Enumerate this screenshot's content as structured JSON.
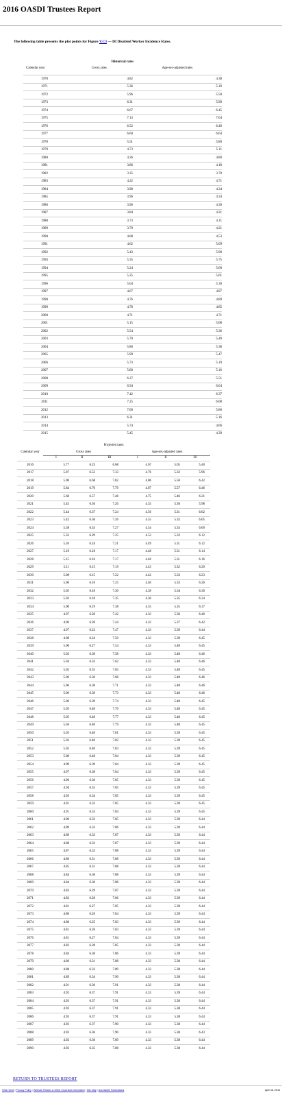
{
  "page": {
    "title": "2016 OASDI Trustees Report",
    "intro_before": "The following table presents the plot points for Figure ",
    "intro_link": "V.C3",
    "intro_after": " — DI Disabled Worker Incidence Rates."
  },
  "historical": {
    "caption": "Historical rates",
    "col_year": "Calendar year",
    "col_gross": "Gross rates",
    "col_adjusted": "Age-sex-adjusted rates",
    "rows": [
      [
        "1970",
        "4.82",
        "4.38"
      ],
      [
        "1971",
        "5.36",
        "5.10"
      ],
      [
        "1972",
        "5.96",
        "5.50"
      ],
      [
        "1973",
        "6.31",
        "5.90"
      ],
      [
        "1974",
        "6.67",
        "6.45"
      ],
      [
        "1975",
        "7.13",
        "7.04"
      ],
      [
        "1976",
        "6.52",
        "6.49"
      ],
      [
        "1977",
        "6.60",
        "6.64"
      ],
      [
        "1978",
        "5.51",
        "5.80"
      ],
      [
        "1979",
        "4.73",
        "5.11"
      ],
      [
        "1980",
        "4.36",
        "4.80"
      ],
      [
        "1981",
        "3.86",
        "4.18"
      ],
      [
        "1982",
        "3.35",
        "3.70"
      ],
      [
        "1983",
        "4.22",
        "4.71"
      ],
      [
        "1984",
        "3.98",
        "4.34"
      ],
      [
        "1985",
        "3.96",
        "4.34"
      ],
      [
        "1986",
        "3.96",
        "4.30"
      ],
      [
        "1987",
        "3.84",
        "4.21"
      ],
      [
        "1988",
        "3.73",
        "4.11"
      ],
      [
        "1989",
        "3.79",
        "4.21"
      ],
      [
        "1990",
        "4.08",
        "4.53"
      ],
      [
        "1991",
        "4.62",
        "5.09"
      ],
      [
        "1992",
        "5.43",
        "5.90"
      ],
      [
        "1993",
        "5.35",
        "5.75"
      ],
      [
        "1994",
        "5.24",
        "5.60"
      ],
      [
        "1995",
        "5.25",
        "5.61"
      ],
      [
        "1996",
        "5.04",
        "5.30"
      ],
      [
        "1997",
        "4.67",
        "4.87"
      ],
      [
        "1998",
        "4.76",
        "4.89"
      ],
      [
        "1999",
        "4.78",
        "4.85"
      ],
      [
        "2000",
        "4.71",
        "4.71"
      ],
      [
        "2001",
        "5.15",
        "5.08"
      ],
      [
        "2002",
        "5.54",
        "5.36"
      ],
      [
        "2003",
        "5.70",
        "5.40"
      ],
      [
        "2004",
        "5.80",
        "5.38"
      ],
      [
        "2005",
        "5.99",
        "5.47"
      ],
      [
        "2006",
        "5.73",
        "5.19"
      ],
      [
        "2007",
        "5.80",
        "5.16"
      ],
      [
        "2008",
        "6.27",
        "5.51"
      ],
      [
        "2009",
        "6.94",
        "6.04"
      ],
      [
        "2010",
        "7.42",
        "6.37"
      ],
      [
        "2011",
        "7.25",
        "6.08"
      ],
      [
        "2012",
        "7.00",
        "5.80"
      ],
      [
        "2013",
        "6.31",
        "5.16"
      ],
      [
        "2014",
        "5.74",
        "4.66"
      ],
      [
        "2015",
        "5.45",
        "4.39"
      ]
    ]
  },
  "projected": {
    "caption": "Projected rates",
    "col_year": "Calendar year",
    "group_gross": "Gross rates",
    "group_adjusted": "Age-sex-adjusted rates",
    "alt_labels": [
      "I",
      "II",
      "III",
      "I",
      "II",
      "III"
    ],
    "rows": [
      [
        "2016",
        "5.77",
        "6.25",
        "6.68",
        "4.67",
        "5.05",
        "5.40"
      ],
      [
        "2017",
        "5.87",
        "6.52",
        "7.33",
        "4.76",
        "5.32",
        "5.96"
      ],
      [
        "2018",
        "5.90",
        "6.68",
        "7.82",
        "4.86",
        "5.50",
        "6.42"
      ],
      [
        "2019",
        "5.84",
        "6.70",
        "7.79",
        "4.87",
        "5.57",
        "6.46"
      ],
      [
        "2020",
        "5.68",
        "6.57",
        "7.48",
        "4.75",
        "5.46",
        "6.21"
      ],
      [
        "2021",
        "5.45",
        "6.56",
        "7.20",
        "4.55",
        "5.36",
        "5.98"
      ],
      [
        "2022",
        "5.44",
        "6.37",
        "7.24",
        "4.56",
        "5.31",
        "6.02"
      ],
      [
        "2023",
        "5.42",
        "6.36",
        "7.26",
        "4.55",
        "5.32",
        "6.05"
      ],
      [
        "2024",
        "5.38",
        "6.33",
        "7.27",
        "4.54",
        "5.33",
        "6.09"
      ],
      [
        "2025",
        "5.32",
        "6.29",
        "7.25",
        "4.53",
        "5.32",
        "6.12"
      ],
      [
        "2026",
        "5.26",
        "6.24",
        "7.21",
        "4.49",
        "5.31",
        "6.12"
      ],
      [
        "2027",
        "5.19",
        "6.18",
        "7.17",
        "4.48",
        "5.31",
        "6.14"
      ],
      [
        "2028",
        "5.15",
        "6.16",
        "7.17",
        "4.46",
        "5.31",
        "6.16"
      ],
      [
        "2029",
        "5.11",
        "6.15",
        "7.19",
        "4.43",
        "5.32",
        "6.20"
      ],
      [
        "2030",
        "5.08",
        "6.15",
        "7.22",
        "4.42",
        "5.33",
        "6.23"
      ],
      [
        "2031",
        "5.06",
        "6.16",
        "7.25",
        "4.40",
        "5.33",
        "6.26"
      ],
      [
        "2032",
        "5.05",
        "6.18",
        "7.30",
        "4.39",
        "5.34",
        "6.30"
      ],
      [
        "2033",
        "5.02",
        "6.18",
        "7.35",
        "4.36",
        "5.35",
        "6.34"
      ],
      [
        "2034",
        "5.00",
        "6.19",
        "7.38",
        "4.35",
        "5.35",
        "6.37"
      ],
      [
        "2035",
        "4.97",
        "6.20",
        "7.42",
        "4.33",
        "5.36",
        "6.40"
      ],
      [
        "2036",
        "4.96",
        "6.20",
        "7.44",
        "4.32",
        "5.37",
        "6.42"
      ],
      [
        "2037",
        "4.97",
        "6.22",
        "7.47",
        "4.33",
        "5.39",
        "6.44"
      ],
      [
        "2038",
        "4.98",
        "6.24",
        "7.50",
        "4.33",
        "5.39",
        "6.45"
      ],
      [
        "2039",
        "5.00",
        "6.27",
        "7.54",
        "4.33",
        "5.40",
        "6.45"
      ],
      [
        "2040",
        "5.02",
        "6.30",
        "7.58",
        "4.33",
        "5.40",
        "6.46"
      ],
      [
        "2041",
        "5.04",
        "6.33",
        "7.62",
        "4.33",
        "5.40",
        "6.46"
      ],
      [
        "2042",
        "5.05",
        "6.35",
        "7.65",
        "4.33",
        "5.40",
        "6.45"
      ],
      [
        "2043",
        "5.06",
        "6.36",
        "7.68",
        "4.33",
        "5.40",
        "6.46"
      ],
      [
        "2044",
        "5.06",
        "6.38",
        "7.71",
        "4.33",
        "5.40",
        "6.46"
      ],
      [
        "2045",
        "5.06",
        "6.39",
        "7.73",
        "4.33",
        "5.40",
        "6.46"
      ],
      [
        "2046",
        "5.06",
        "6.39",
        "7.74",
        "4.33",
        "5.40",
        "6.45"
      ],
      [
        "2047",
        "5.05",
        "6.40",
        "7.76",
        "4.33",
        "5.40",
        "6.45"
      ],
      [
        "2048",
        "5.05",
        "6.40",
        "7.77",
        "4.33",
        "5.40",
        "6.45"
      ],
      [
        "2049",
        "5.04",
        "6.40",
        "7.79",
        "4.33",
        "5.40",
        "6.45"
      ],
      [
        "2050",
        "5.03",
        "6.40",
        "7.81",
        "4.33",
        "5.39",
        "6.45"
      ],
      [
        "2051",
        "5.03",
        "6.40",
        "7.82",
        "4.33",
        "5.39",
        "6.45"
      ],
      [
        "2052",
        "5.02",
        "6.40",
        "7.83",
        "4.33",
        "5.39",
        "6.45"
      ],
      [
        "2053",
        "5.00",
        "6.40",
        "7.84",
        "4.33",
        "5.39",
        "6.45"
      ],
      [
        "2054",
        "4.99",
        "6.39",
        "7.84",
        "4.33",
        "5.39",
        "6.45"
      ],
      [
        "2055",
        "4.97",
        "6.38",
        "7.84",
        "4.33",
        "5.39",
        "6.45"
      ],
      [
        "2056",
        "4.96",
        "6.36",
        "7.85",
        "4.33",
        "5.39",
        "6.45"
      ],
      [
        "2057",
        "4.94",
        "6.35",
        "7.85",
        "4.33",
        "5.39",
        "6.45"
      ],
      [
        "2058",
        "4.93",
        "6.34",
        "7.85",
        "4.33",
        "5.39",
        "6.45"
      ],
      [
        "2059",
        "4.91",
        "6.33",
        "7.85",
        "4.33",
        "5.39",
        "6.45"
      ],
      [
        "2060",
        "4.91",
        "6.33",
        "7.84",
        "4.33",
        "5.39",
        "6.45"
      ],
      [
        "2061",
        "4.90",
        "6.33",
        "7.85",
        "4.33",
        "5.39",
        "6.44"
      ],
      [
        "2062",
        "4.89",
        "6.33",
        "7.86",
        "4.33",
        "5.39",
        "6.44"
      ],
      [
        "2063",
        "4.89",
        "6.33",
        "7.87",
        "4.33",
        "5.39",
        "6.44"
      ],
      [
        "2064",
        "4.88",
        "6.33",
        "7.87",
        "4.33",
        "5.39",
        "6.44"
      ],
      [
        "2065",
        "4.87",
        "6.32",
        "7.88",
        "4.33",
        "5.39",
        "6.44"
      ],
      [
        "2066",
        "4.86",
        "6.31",
        "7.88",
        "4.33",
        "5.39",
        "6.44"
      ],
      [
        "2067",
        "4.85",
        "6.31",
        "7.88",
        "4.33",
        "5.39",
        "6.44"
      ],
      [
        "2068",
        "4.84",
        "6.30",
        "7.88",
        "4.33",
        "5.39",
        "6.44"
      ],
      [
        "2069",
        "4.84",
        "6.30",
        "7.88",
        "4.33",
        "5.39",
        "6.44"
      ],
      [
        "2070",
        "4.83",
        "6.29",
        "7.87",
        "4.33",
        "5.39",
        "6.44"
      ],
      [
        "2071",
        "4.82",
        "6.28",
        "7.86",
        "4.33",
        "5.39",
        "6.44"
      ],
      [
        "2072",
        "4.81",
        "6.27",
        "7.85",
        "4.33",
        "5.39",
        "6.44"
      ],
      [
        "2073",
        "4.80",
        "6.26",
        "7.84",
        "4.33",
        "5.39",
        "6.44"
      ],
      [
        "2074",
        "4.80",
        "6.25",
        "7.83",
        "4.33",
        "5.39",
        "6.44"
      ],
      [
        "2075",
        "4.81",
        "6.26",
        "7.83",
        "4.33",
        "5.39",
        "6.44"
      ],
      [
        "2076",
        "4.81",
        "6.27",
        "7.84",
        "4.33",
        "5.39",
        "6.44"
      ],
      [
        "2077",
        "4.83",
        "6.28",
        "7.85",
        "4.33",
        "5.39",
        "6.44"
      ],
      [
        "2078",
        "4.84",
        "6.30",
        "7.86",
        "4.33",
        "5.39",
        "6.44"
      ],
      [
        "2079",
        "4.86",
        "6.31",
        "7.88",
        "4.33",
        "5.38",
        "6.44"
      ],
      [
        "2080",
        "4.88",
        "6.33",
        "7.89",
        "4.33",
        "5.38",
        "6.44"
      ],
      [
        "2081",
        "4.89",
        "6.34",
        "7.90",
        "4.33",
        "5.38",
        "6.44"
      ],
      [
        "2082",
        "4.91",
        "6.36",
        "7.91",
        "4.33",
        "5.38",
        "6.44"
      ],
      [
        "2083",
        "4.92",
        "6.37",
        "7.91",
        "4.33",
        "5.39",
        "6.44"
      ],
      [
        "2084",
        "4.93",
        "6.37",
        "7.91",
        "4.33",
        "5.38",
        "6.44"
      ],
      [
        "2085",
        "4.93",
        "6.37",
        "7.91",
        "4.33",
        "5.38",
        "6.44"
      ],
      [
        "2086",
        "4.93",
        "6.37",
        "7.91",
        "4.33",
        "5.38",
        "6.44"
      ],
      [
        "2087",
        "4.93",
        "6.37",
        "7.90",
        "4.33",
        "5.38",
        "6.44"
      ],
      [
        "2088",
        "4.93",
        "6.36",
        "7.90",
        "4.33",
        "5.38",
        "6.43"
      ],
      [
        "2089",
        "4.92",
        "6.36",
        "7.89",
        "4.33",
        "5.38",
        "6.44"
      ],
      [
        "2090",
        "4.92",
        "6.35",
        "7.88",
        "4.33",
        "5.38",
        "6.44"
      ]
    ]
  },
  "return_link": "RETURN TO TRUSTEES REPORT",
  "footer": {
    "links": [
      "SSA Home",
      "Privacy Policy",
      "Website Policies & Other Important Information",
      "Site Map",
      "Accessible Publications"
    ],
    "date": "April 18, 2016"
  }
}
